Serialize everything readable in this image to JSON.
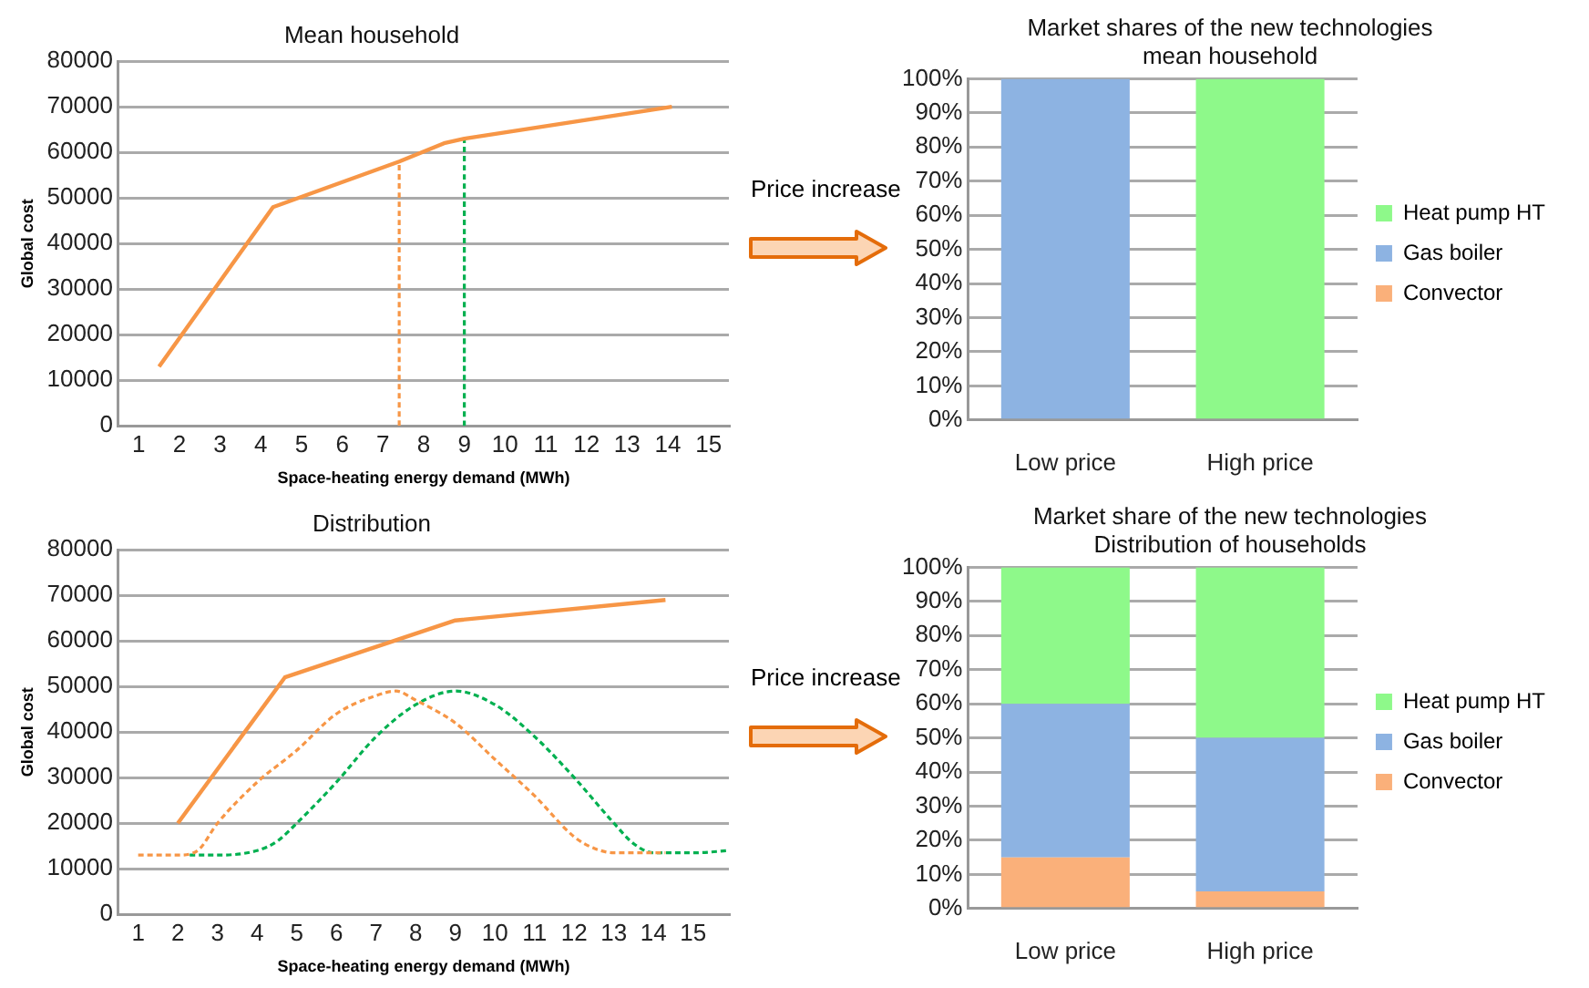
{
  "chart_data": [
    {
      "type": "line",
      "title": "Mean household",
      "xlabel": "Space-heating energy demand (MWh)",
      "ylabel": "Global cost",
      "xlim": [
        0.5,
        15.5
      ],
      "xticks": [
        1,
        2,
        3,
        4,
        5,
        6,
        7,
        8,
        9,
        10,
        11,
        12,
        13,
        14,
        15
      ],
      "ylim": [
        0,
        80000
      ],
      "yticks": [
        0,
        10000,
        20000,
        30000,
        40000,
        50000,
        60000,
        70000,
        80000
      ],
      "grid": "y",
      "legend": false,
      "marker": "none",
      "series": [
        {
          "color": "#f79646",
          "x": [
            1.5,
            4.3,
            7.4,
            8.5,
            9,
            14.1
          ],
          "values": [
            13000,
            48000,
            58000,
            62000,
            63000,
            70000
          ]
        },
        {
          "color": "#f79646",
          "line_style": "dashed",
          "x": [
            7.4,
            7.4
          ],
          "values": [
            0,
            58000
          ]
        },
        {
          "color": "#00b050",
          "line_style": "dashed",
          "x": [
            9,
            9
          ],
          "values": [
            0,
            63000
          ]
        }
      ]
    },
    {
      "type": "bar",
      "title": "Market shares of the new technologies",
      "subtitle": "mean household",
      "annotations": [
        "Price increase"
      ],
      "categories": [
        "Low price",
        "High price"
      ],
      "stacked": true,
      "ylim": [
        0,
        100
      ],
      "yticks": [
        {
          "value": 0,
          "label": "0%"
        },
        {
          "value": 10,
          "label": "10%"
        },
        {
          "value": 20,
          "label": "20%"
        },
        {
          "value": 30,
          "label": "30%"
        },
        {
          "value": 40,
          "label": "40%"
        },
        {
          "value": 50,
          "label": "50%"
        },
        {
          "value": 60,
          "label": "60%"
        },
        {
          "value": 70,
          "label": "70%"
        },
        {
          "value": 80,
          "label": "80%"
        },
        {
          "value": 90,
          "label": "90%"
        },
        {
          "value": 100,
          "label": "100%"
        }
      ],
      "grid": "y",
      "legend": "right",
      "series": [
        {
          "name": "Convector",
          "color": "#fab07a",
          "values": [
            0,
            0
          ]
        },
        {
          "name": "Gas boiler",
          "color": "#8db3e2",
          "values": [
            100,
            0
          ]
        },
        {
          "name": "Heat pump HT",
          "color": "#8ef98a",
          "values": [
            0,
            100
          ]
        }
      ]
    },
    {
      "type": "line",
      "title": "Distribution",
      "xlabel": "Space-heating energy demand (MWh)",
      "ylabel": "Global cost",
      "xlim": [
        0.5,
        15.9
      ],
      "xticks": [
        1,
        2,
        3,
        4,
        5,
        6,
        7,
        8,
        9,
        10,
        11,
        12,
        13,
        14,
        15
      ],
      "ylim": [
        0,
        80000
      ],
      "yticks": [
        0,
        10000,
        20000,
        30000,
        40000,
        50000,
        60000,
        70000,
        80000
      ],
      "grid": "y",
      "legend": false,
      "marker": "none",
      "series": [
        {
          "color": "#f79646",
          "x": [
            2,
            4.7,
            9,
            14.3
          ],
          "values": [
            20000,
            52000,
            64500,
            69000
          ]
        },
        {
          "color": "#f79646",
          "line_style": "dashed",
          "x": [
            1,
            2,
            2.5,
            3,
            4,
            5,
            6,
            7,
            7.5,
            8,
            9,
            10,
            11,
            12,
            12.5,
            13,
            14.3
          ],
          "values": [
            13000,
            13000,
            14000,
            20000,
            29000,
            36000,
            44000,
            48000,
            49000,
            47000,
            42000,
            34000,
            26000,
            17000,
            14500,
            13500,
            13500
          ]
        },
        {
          "color": "#00b050",
          "line_style": "dashed",
          "x": [
            2.3,
            3,
            4,
            4.5,
            5,
            6,
            7,
            8,
            9,
            10,
            11,
            12,
            13,
            13.5,
            14,
            15,
            15.9
          ],
          "values": [
            13000,
            13000,
            14000,
            16000,
            20000,
            29000,
            39000,
            46000,
            49000,
            46000,
            39000,
            30000,
            20000,
            15500,
            13500,
            13500,
            14000
          ]
        }
      ]
    },
    {
      "type": "bar",
      "title": "Market share of the new technologies",
      "subtitle": "Distribution of households",
      "annotations": [
        "Price increase"
      ],
      "categories": [
        "Low price",
        "High price"
      ],
      "stacked": true,
      "ylim": [
        0,
        100
      ],
      "yticks": [
        {
          "value": 0,
          "label": "0%"
        },
        {
          "value": 10,
          "label": "10%"
        },
        {
          "value": 20,
          "label": "20%"
        },
        {
          "value": 30,
          "label": "30%"
        },
        {
          "value": 40,
          "label": "40%"
        },
        {
          "value": 50,
          "label": "50%"
        },
        {
          "value": 60,
          "label": "60%"
        },
        {
          "value": 70,
          "label": "70%"
        },
        {
          "value": 80,
          "label": "80%"
        },
        {
          "value": 90,
          "label": "90%"
        },
        {
          "value": 100,
          "label": "100%"
        }
      ],
      "grid": "y",
      "legend": "right",
      "series": [
        {
          "name": "Convector",
          "color": "#fab07a",
          "values": [
            15,
            5
          ]
        },
        {
          "name": "Gas boiler",
          "color": "#8db3e2",
          "values": [
            45,
            45
          ]
        },
        {
          "name": "Heat pump HT",
          "color": "#8ef98a",
          "values": [
            40,
            50
          ]
        }
      ]
    }
  ]
}
